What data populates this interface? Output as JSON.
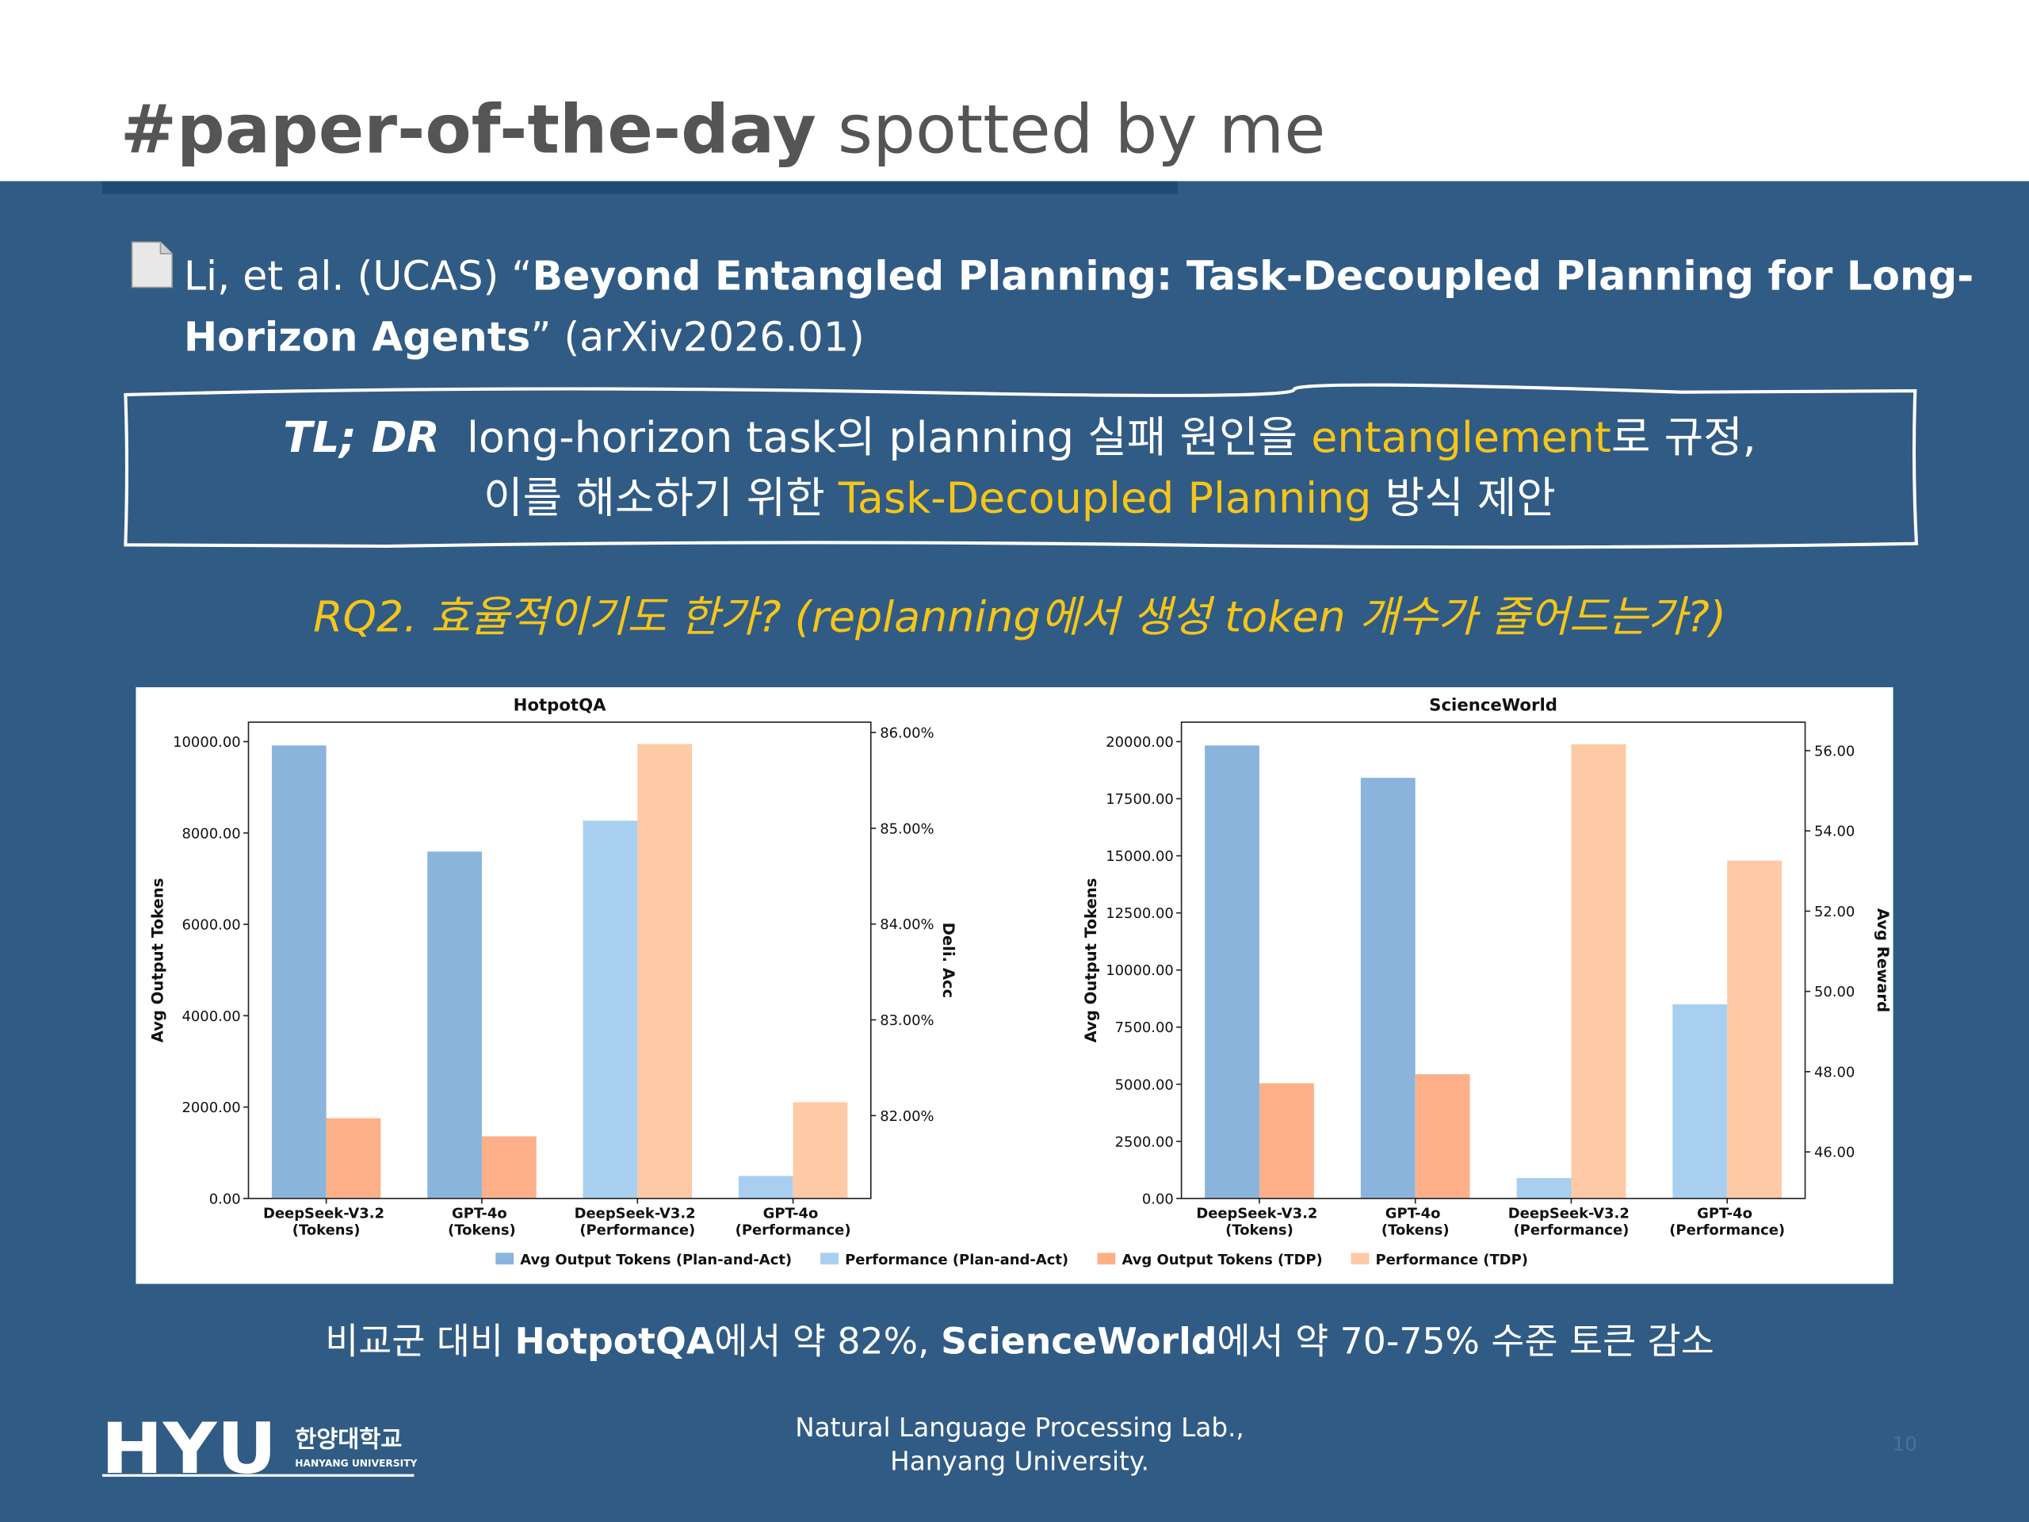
{
  "header": {
    "lines": [
      {
        "segments": [
          {
            "text": "#paper-of-the-day",
            "bold": true
          },
          {
            "text": " spotted by me"
          }
        ]
      }
    ]
  },
  "citation": {
    "lines": [
      {
        "segments": [
          {
            "text": "Li, et al. (UCAS) “"
          },
          {
            "text": "Beyond Entangled Planning: Task-Decoupled Planning for Long-",
            "bold": true
          }
        ]
      },
      {
        "segments": [
          {
            "text": "Horizon Agents",
            "bold": true
          },
          {
            "text": "” (arXiv2026.01)"
          }
        ]
      }
    ]
  },
  "tldr": {
    "lines": [
      {
        "segments": [
          {
            "text": "TL; DR",
            "bold": true,
            "italic": true
          },
          {
            "text": "  long-horizon task의 planning 실패 원인을 "
          },
          {
            "text": "entanglement",
            "color": "#f5c518"
          },
          {
            "text": "로 규정,"
          }
        ]
      },
      {
        "segments": [
          {
            "text": "이를 해소하기 위한 "
          },
          {
            "text": "Task-Decoupled Planning",
            "color": "#f5c518"
          },
          {
            "text": " 방식 제안"
          }
        ]
      }
    ]
  },
  "rq": {
    "lines": [
      {
        "segments": [
          {
            "text": "RQ2. 효율적이기도 한가? (replanning에서 생성 token 개수가 줄어드는가?)",
            "italic": true,
            "color": "#f5c518"
          }
        ]
      }
    ]
  },
  "chart_data": [
    {
      "type": "bar",
      "title": "HotpotQA",
      "categories": [
        "DeepSeek-V3.2 (Tokens)",
        "GPT-4o (Tokens)",
        "DeepSeek-V3.2 (Performance)",
        "GPT-4o (Performance)"
      ],
      "series": [
        {
          "name": "Avg Output Tokens (Plan-and-Act)",
          "color": "#8ab4dc",
          "values": [
            9915,
            7592,
            null,
            null
          ]
        },
        {
          "name": "Performance (Plan-and-Act)",
          "color": "#a9cff0",
          "axis": "y2",
          "values": [
            null,
            null,
            85.08,
            81.37
          ]
        },
        {
          "name": "Avg Output Tokens (TDP)",
          "color": "#fdb088",
          "values": [
            1756,
            1360,
            null,
            null
          ]
        },
        {
          "name": "Performance (TDP)",
          "color": "#fecaa5",
          "axis": "y2",
          "values": [
            null,
            null,
            85.88,
            82.14
          ]
        }
      ],
      "y_label": "Avg Output Tokens",
      "y2_label": "Deli. Acc",
      "ylim": [
        0,
        10425
      ],
      "yticks": [
        {
          "value": 0,
          "label": "0.00"
        },
        {
          "value": 2000,
          "label": "2000.00"
        },
        {
          "value": 4000,
          "label": "4000.00"
        },
        {
          "value": 6000,
          "label": "6000.00"
        },
        {
          "value": 8000,
          "label": "8000.00"
        },
        {
          "value": 10000,
          "label": "10000.00"
        }
      ],
      "y2lim": [
        81.135,
        86.108
      ],
      "y2ticks": [
        {
          "value": 82,
          "label": "82.00%"
        },
        {
          "value": 83,
          "label": "83.00%"
        },
        {
          "value": 84,
          "label": "84.00%"
        },
        {
          "value": 85,
          "label": "85.00%"
        },
        {
          "value": 86,
          "label": "86.00%"
        }
      ]
    },
    {
      "type": "bar",
      "title": "ScienceWorld",
      "categories": [
        "DeepSeek-V3.2 (Tokens)",
        "GPT-4o (Tokens)",
        "DeepSeek-V3.2 (Performance)",
        "GPT-4o (Performance)"
      ],
      "series": [
        {
          "color": "#8ab4dc",
          "values": [
            19830,
            18414,
            null,
            null
          ]
        },
        {
          "color": "#a9cff0",
          "axis": "y2",
          "values": [
            null,
            null,
            45.35,
            49.68
          ]
        },
        {
          "color": "#fdb088",
          "values": [
            5042,
            5439,
            null,
            null
          ]
        },
        {
          "color": "#fecaa5",
          "axis": "y2",
          "values": [
            null,
            null,
            56.16,
            53.26
          ]
        }
      ],
      "y_label": "Avg Output Tokens",
      "y2_label": "Avg Reward",
      "ylim": [
        0,
        20850
      ],
      "yticks": [
        {
          "value": 0,
          "label": "0.00"
        },
        {
          "value": 2500,
          "label": "2500.00"
        },
        {
          "value": 5000,
          "label": "5000.00"
        },
        {
          "value": 7500,
          "label": "7500.00"
        },
        {
          "value": 10000,
          "label": "10000.00"
        },
        {
          "value": 12500,
          "label": "12500.00"
        },
        {
          "value": 15000,
          "label": "15000.00"
        },
        {
          "value": 17500,
          "label": "17500.00"
        },
        {
          "value": 20000,
          "label": "20000.00"
        }
      ],
      "y2lim": [
        44.84,
        56.71
      ],
      "y2ticks": [
        {
          "value": 46,
          "label": "46.00"
        },
        {
          "value": 48,
          "label": "48.00"
        },
        {
          "value": 50,
          "label": "50.00"
        },
        {
          "value": 52,
          "label": "52.00"
        },
        {
          "value": 54,
          "label": "54.00"
        },
        {
          "value": 56,
          "label": "56.00"
        }
      ]
    }
  ],
  "summary": {
    "lines": [
      {
        "segments": [
          {
            "text": "비교군 대비 "
          },
          {
            "text": "HotpotQA",
            "bold": true
          },
          {
            "text": "에서 약 82%, "
          },
          {
            "text": "ScienceWorld",
            "bold": true
          },
          {
            "text": "에서 약 70-75% 수준 토큰 감소"
          }
        ]
      }
    ]
  },
  "logo": {
    "mark": "HYU",
    "name_ko": "한양대학교",
    "name_en": "HANYANG UNIVERSITY"
  },
  "footer": {
    "lines": [
      {
        "segments": [
          {
            "text": "Natural Language Processing Lab.,"
          }
        ]
      },
      {
        "segments": [
          {
            "text": "Hanyang University."
          }
        ]
      }
    ],
    "page_number": 10
  }
}
